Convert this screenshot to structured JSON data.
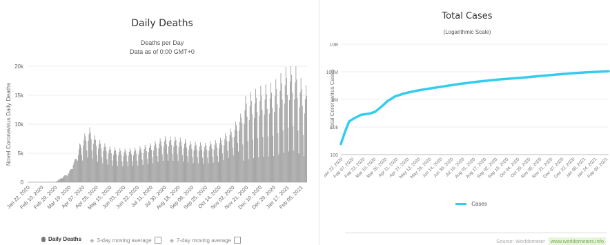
{
  "left": {
    "title": "Daily Deaths",
    "subtitle": "Deaths per Day",
    "subtitle2": "Data as of 0:00 GMT+0",
    "legend": [
      {
        "label": "Daily Deaths",
        "icon": "bar-marker",
        "toggle": false
      },
      {
        "label": "3-day moving average",
        "icon": "diamond-marker",
        "toggle": true
      },
      {
        "label": "7-day moving average",
        "icon": "diamond-marker",
        "toggle": true
      }
    ]
  },
  "right": {
    "title": "Total Cases",
    "subtitle": "(Logarithmic Scale)",
    "legend_label": "Cases",
    "source_label": "Source: Worldometer",
    "watermark": "www.worldometers.info"
  },
  "chart_data": [
    {
      "type": "bar",
      "title": "Daily Deaths",
      "subtitle": "Deaths per Day",
      "ylabel": "Novel Coronavirus Daily Deaths",
      "ylim": [
        0,
        20000
      ],
      "yticks": [
        0,
        5000,
        10000,
        15000,
        20000
      ],
      "ytick_labels": [
        "0",
        "5k",
        "10k",
        "15k",
        "20k"
      ],
      "x_start": "2020-01-22",
      "x_end": "2021-02-13",
      "xticks": [
        "Jan 22, 2020",
        "Feb 10, 2020",
        "Feb 29, 2020",
        "Mar 19, 2020",
        "Apr 07, 2020",
        "Apr 26, 2020",
        "May 15, 2020",
        "Jun 03, 2020",
        "Jun 22, 2020",
        "Jul 11, 2020",
        "Jul 30, 2020",
        "Aug 18, 2020",
        "Sep 06, 2020",
        "Sep 25, 2020",
        "Oct 14, 2020",
        "Nov 02, 2020",
        "Nov 21, 2020",
        "Dec 10, 2020",
        "Dec 29, 2020",
        "Jan 17, 2021",
        "Feb 05, 2021"
      ],
      "trend_dates": [
        "2020-01-22",
        "2020-02-29",
        "2020-03-19",
        "2020-04-07",
        "2020-04-17",
        "2020-04-26",
        "2020-05-15",
        "2020-06-03",
        "2020-06-22",
        "2020-07-11",
        "2020-07-30",
        "2020-08-18",
        "2020-09-06",
        "2020-09-25",
        "2020-10-14",
        "2020-11-02",
        "2020-11-21",
        "2020-12-10",
        "2020-12-29",
        "2021-01-17",
        "2021-01-26",
        "2021-02-05",
        "2021-02-13"
      ],
      "trend_values": [
        0,
        50,
        1500,
        6200,
        7400,
        6000,
        4800,
        4500,
        4700,
        5300,
        6200,
        6100,
        5500,
        5300,
        5800,
        7500,
        10500,
        11500,
        12000,
        14000,
        14500,
        12500,
        11500
      ],
      "grid": true,
      "legend_position": "bottom"
    },
    {
      "type": "line",
      "title": "Total Cases",
      "subtitle": "(Logarithmic Scale)",
      "ylabel": "Total Coronavirus Cases",
      "yscale": "log",
      "ylim": [
        100,
        10000000000
      ],
      "yticks": [
        100,
        10000,
        1000000,
        100000000,
        10000000000
      ],
      "ytick_labels": [
        "100",
        "10k",
        "1M",
        "100M",
        "10B"
      ],
      "x_start": "2020-01-22",
      "x_end": "2021-02-13",
      "xticks": [
        "Jan 22, 2020",
        "Feb 07, 2020",
        "Feb 23, 2020",
        "Mar 10, 2020",
        "Mar 26, 2020",
        "Apr 11, 2020",
        "Apr 27, 2020",
        "May 13, 2020",
        "May 29, 2020",
        "Jun 14, 2020",
        "Jun 30, 2020",
        "Jul 16, 2020",
        "Aug 01, 2020",
        "Aug 17, 2020",
        "Sep 02, 2020",
        "Sep 18, 2020",
        "Oct 04, 2020",
        "Oct 20, 2020",
        "Nov 05, 2020",
        "Nov 21, 2020",
        "Dec 07, 2020",
        "Dec 23, 2020",
        "Jan 08, 2021",
        "Jan 24, 2021",
        "Feb 09, 2021"
      ],
      "series": [
        {
          "name": "Cases",
          "color": "#33ccee",
          "dates": [
            "2020-01-22",
            "2020-01-28",
            "2020-02-03",
            "2020-02-10",
            "2020-02-20",
            "2020-03-05",
            "2020-03-12",
            "2020-03-20",
            "2020-03-30",
            "2020-04-10",
            "2020-04-25",
            "2020-05-15",
            "2020-06-10",
            "2020-07-10",
            "2020-08-10",
            "2020-09-10",
            "2020-10-10",
            "2020-11-10",
            "2020-12-10",
            "2021-01-10",
            "2021-02-13"
          ],
          "values": [
            580,
            4500,
            25000,
            42000,
            76000,
            97000,
            130000,
            275000,
            780000,
            1700000,
            2900000,
            4700000,
            7500000,
            12800000,
            20000000,
            28500000,
            37000000,
            51000000,
            70000000,
            90000000,
            108000000
          ]
        }
      ],
      "grid": true,
      "legend_position": "bottom"
    }
  ]
}
